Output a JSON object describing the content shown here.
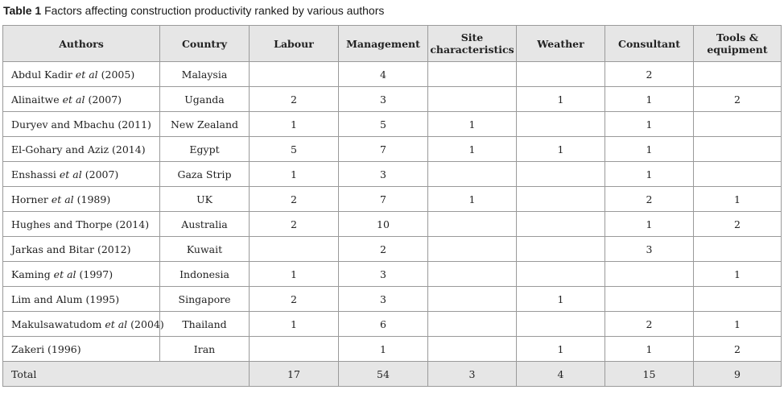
{
  "caption": {
    "label": "Table 1",
    "text": "Factors affecting construction productivity ranked by various authors"
  },
  "headers": {
    "authors": "Authors",
    "country": "Country",
    "labour": "Labour",
    "management": "Management",
    "site_line1": "Site",
    "site_line2": "characteristics",
    "weather": "Weather",
    "consultant": "Consultant",
    "tools_line1": "Tools &",
    "tools_line2": "equipment"
  },
  "rows": [
    {
      "author_pre": "Abdul Kadir ",
      "author_em": "et al",
      "author_post": " (2005)",
      "country": "Malaysia",
      "labour": "",
      "management": "4",
      "site": "",
      "weather": "",
      "consultant": "2",
      "tools": ""
    },
    {
      "author_pre": "Alinaitwe ",
      "author_em": "et al",
      "author_post": " (2007)",
      "country": "Uganda",
      "labour": "2",
      "management": "3",
      "site": "",
      "weather": "1",
      "consultant": "1",
      "tools": "2"
    },
    {
      "author_pre": "Duryev and Mbachu (2011)",
      "author_em": "",
      "author_post": "",
      "country": "New Zealand",
      "labour": "1",
      "management": "5",
      "site": "1",
      "weather": "",
      "consultant": "1",
      "tools": ""
    },
    {
      "author_pre": "El-Gohary and Aziz (2014)",
      "author_em": "",
      "author_post": "",
      "country": "Egypt",
      "labour": "5",
      "management": "7",
      "site": "1",
      "weather": "1",
      "consultant": "1",
      "tools": ""
    },
    {
      "author_pre": "Enshassi ",
      "author_em": "et al",
      "author_post": " (2007)",
      "country": "Gaza Strip",
      "labour": "1",
      "management": "3",
      "site": "",
      "weather": "",
      "consultant": "1",
      "tools": ""
    },
    {
      "author_pre": "Horner ",
      "author_em": "et al",
      "author_post": " (1989)",
      "country": "UK",
      "labour": "2",
      "management": "7",
      "site": "1",
      "weather": "",
      "consultant": "2",
      "tools": "1"
    },
    {
      "author_pre": "Hughes and Thorpe (2014)",
      "author_em": "",
      "author_post": "",
      "country": "Australia",
      "labour": "2",
      "management": "10",
      "site": "",
      "weather": "",
      "consultant": "1",
      "tools": "2"
    },
    {
      "author_pre": "Jarkas and Bitar (2012)",
      "author_em": "",
      "author_post": "",
      "country": "Kuwait",
      "labour": "",
      "management": "2",
      "site": "",
      "weather": "",
      "consultant": "3",
      "tools": ""
    },
    {
      "author_pre": "Kaming ",
      "author_em": "et al",
      "author_post": " (1997)",
      "country": "Indonesia",
      "labour": "1",
      "management": "3",
      "site": "",
      "weather": "",
      "consultant": "",
      "tools": "1"
    },
    {
      "author_pre": "Lim and Alum (1995)",
      "author_em": "",
      "author_post": "",
      "country": "Singapore",
      "labour": "2",
      "management": "3",
      "site": "",
      "weather": "1",
      "consultant": "",
      "tools": ""
    },
    {
      "author_pre": "Makulsawatudom ",
      "author_em": "et al",
      "author_post": " (2004)",
      "country": "Thailand",
      "labour": "1",
      "management": "6",
      "site": "",
      "weather": "",
      "consultant": "2",
      "tools": "1"
    },
    {
      "author_pre": "Zakeri (1996)",
      "author_em": "",
      "author_post": "",
      "country": "Iran",
      "labour": "",
      "management": "1",
      "site": "",
      "weather": "1",
      "consultant": "1",
      "tools": "2"
    }
  ],
  "total": {
    "label": "Total",
    "labour": "17",
    "management": "54",
    "site": "3",
    "weather": "4",
    "consultant": "15",
    "tools": "9"
  }
}
